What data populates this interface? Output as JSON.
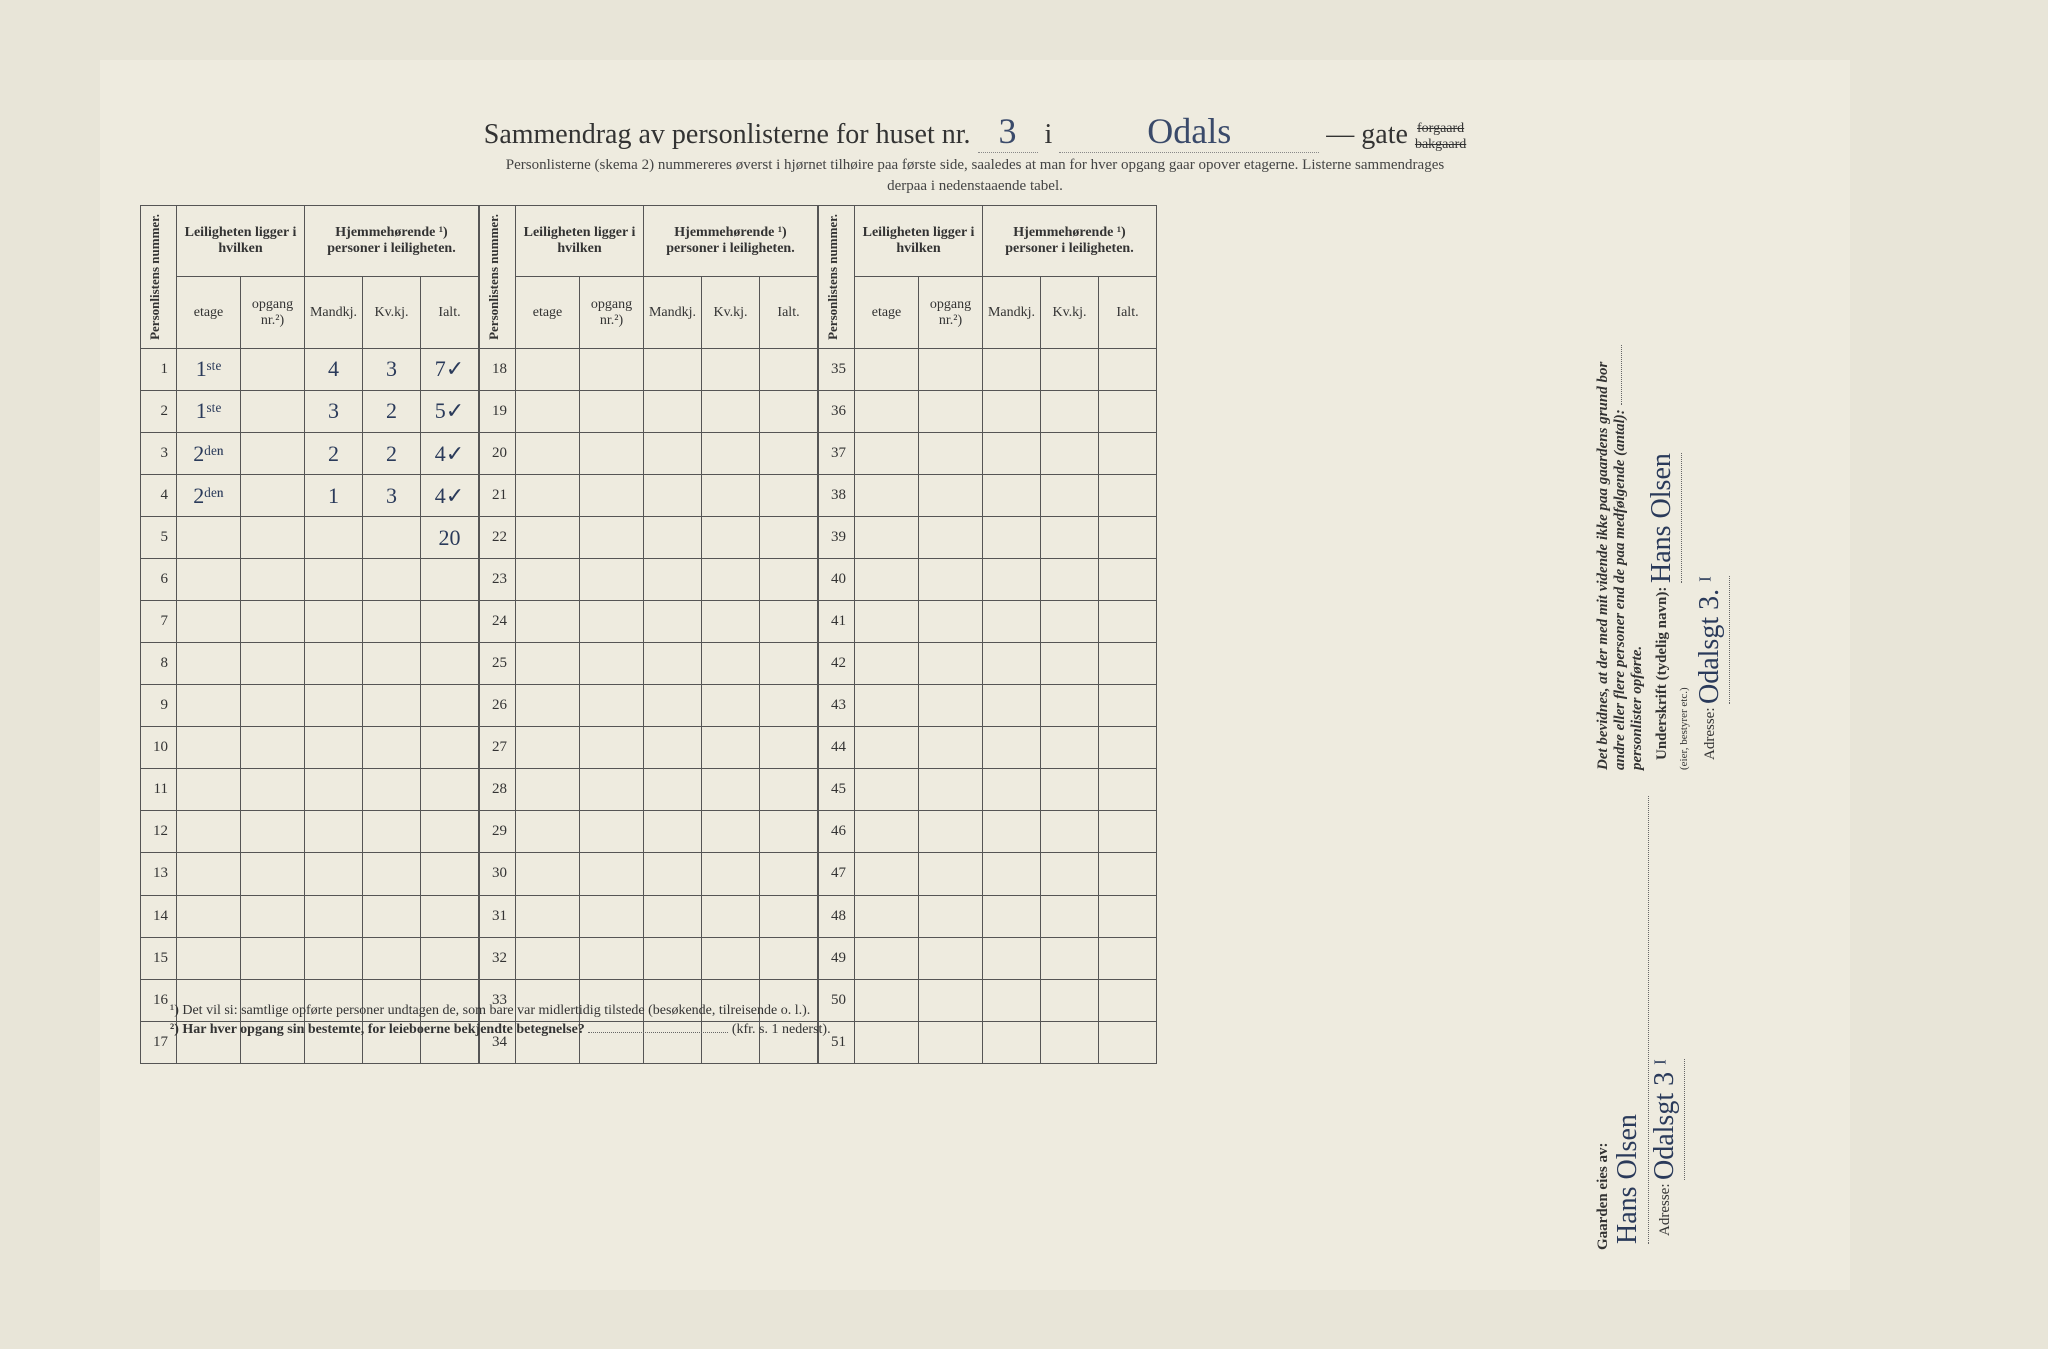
{
  "title": {
    "prefix": "Sammendrag av personlisterne for huset nr.",
    "house_nr": "3",
    "i": "i",
    "street": "Odals",
    "dash": "—",
    "gate": "gate",
    "suffix_top": "forgaard",
    "suffix_bot": "bakgaard"
  },
  "subtitle": "Personlisterne (skema 2) nummereres øverst i hjørnet tilhøire paa første side, saaledes at man for hver opgang gaar opover etagerne.  Listerne sammendrages",
  "subtitle2": "derpaa i nedenstaaende tabel.",
  "headers": {
    "personlistens": "Personlistens nummer.",
    "leilig": "Leiligheten ligger i hvilken",
    "hjemme": "Hjemmehørende ¹) personer i leiligheten.",
    "etage": "etage",
    "opgang": "opgang nr.²)",
    "mandkj": "Mandkj.",
    "kvkj": "Kv.kj.",
    "ialt": "Ialt."
  },
  "rows1": [
    {
      "n": "1",
      "etage": "1ˢᵗᵉ",
      "opg": "",
      "m": "4",
      "k": "3",
      "i": "7✓"
    },
    {
      "n": "2",
      "etage": "1ˢᵗᵉ",
      "opg": "",
      "m": "3",
      "k": "2",
      "i": "5✓"
    },
    {
      "n": "3",
      "etage": "2ᵈᵉⁿ",
      "opg": "",
      "m": "2",
      "k": "2",
      "i": "4✓"
    },
    {
      "n": "4",
      "etage": "2ᵈᵉⁿ",
      "opg": "",
      "m": "1",
      "k": "3",
      "i": "4✓"
    },
    {
      "n": "5",
      "etage": "",
      "opg": "",
      "m": "",
      "k": "",
      "i": "20"
    },
    {
      "n": "6",
      "etage": "",
      "opg": "",
      "m": "",
      "k": "",
      "i": ""
    },
    {
      "n": "7",
      "etage": "",
      "opg": "",
      "m": "",
      "k": "",
      "i": ""
    },
    {
      "n": "8",
      "etage": "",
      "opg": "",
      "m": "",
      "k": "",
      "i": ""
    },
    {
      "n": "9",
      "etage": "",
      "opg": "",
      "m": "",
      "k": "",
      "i": ""
    },
    {
      "n": "10",
      "etage": "",
      "opg": "",
      "m": "",
      "k": "",
      "i": ""
    },
    {
      "n": "11",
      "etage": "",
      "opg": "",
      "m": "",
      "k": "",
      "i": ""
    },
    {
      "n": "12",
      "etage": "",
      "opg": "",
      "m": "",
      "k": "",
      "i": ""
    },
    {
      "n": "13",
      "etage": "",
      "opg": "",
      "m": "",
      "k": "",
      "i": ""
    },
    {
      "n": "14",
      "etage": "",
      "opg": "",
      "m": "",
      "k": "",
      "i": ""
    },
    {
      "n": "15",
      "etage": "",
      "opg": "",
      "m": "",
      "k": "",
      "i": ""
    },
    {
      "n": "16",
      "etage": "",
      "opg": "",
      "m": "",
      "k": "",
      "i": ""
    },
    {
      "n": "17",
      "etage": "",
      "opg": "",
      "m": "",
      "k": "",
      "i": ""
    }
  ],
  "rows2": [
    {
      "n": "18"
    },
    {
      "n": "19"
    },
    {
      "n": "20"
    },
    {
      "n": "21"
    },
    {
      "n": "22"
    },
    {
      "n": "23"
    },
    {
      "n": "24"
    },
    {
      "n": "25"
    },
    {
      "n": "26"
    },
    {
      "n": "27"
    },
    {
      "n": "28"
    },
    {
      "n": "29"
    },
    {
      "n": "30"
    },
    {
      "n": "31"
    },
    {
      "n": "32"
    },
    {
      "n": "33"
    },
    {
      "n": "34"
    }
  ],
  "rows3": [
    {
      "n": "35"
    },
    {
      "n": "36"
    },
    {
      "n": "37"
    },
    {
      "n": "38"
    },
    {
      "n": "39"
    },
    {
      "n": "40"
    },
    {
      "n": "41"
    },
    {
      "n": "42"
    },
    {
      "n": "43"
    },
    {
      "n": "44"
    },
    {
      "n": "45"
    },
    {
      "n": "46"
    },
    {
      "n": "47"
    },
    {
      "n": "48"
    },
    {
      "n": "49"
    },
    {
      "n": "50"
    },
    {
      "n": "51"
    }
  ],
  "footnotes": {
    "f1": "¹)  Det vil si: samtlige opførte personer undtagen de, som bare var midlertidig tilstede (besøkende, tilreisende o. l.).",
    "f2a": "²)  Har hver opgang sin bestemte, for leieboerne bekjendte betegnelse?",
    "f2b": "(kfr. s. 1 nederst)."
  },
  "sidebar": {
    "owner_label": "Gaarden eies av:",
    "owner_name": "Hans Olsen",
    "owner_addr_label": "Adresse:",
    "owner_addr": "Odalsgt 3 ᴵ",
    "decl1": "Det bevidnes, at der med mit vidende ikke paa gaardens grund bor",
    "decl2": "andre eller flere personer end de paa medfølgende (antal):",
    "decl3": "personlister opførte.",
    "sign_label": "Underskrift (tydelig navn):",
    "sign_name": "Hans Olsen",
    "sign_note": "(eier, bestyrer etc.)",
    "addr2_label": "Adresse:",
    "addr2": "Odalsgt 3. ᴵ"
  }
}
